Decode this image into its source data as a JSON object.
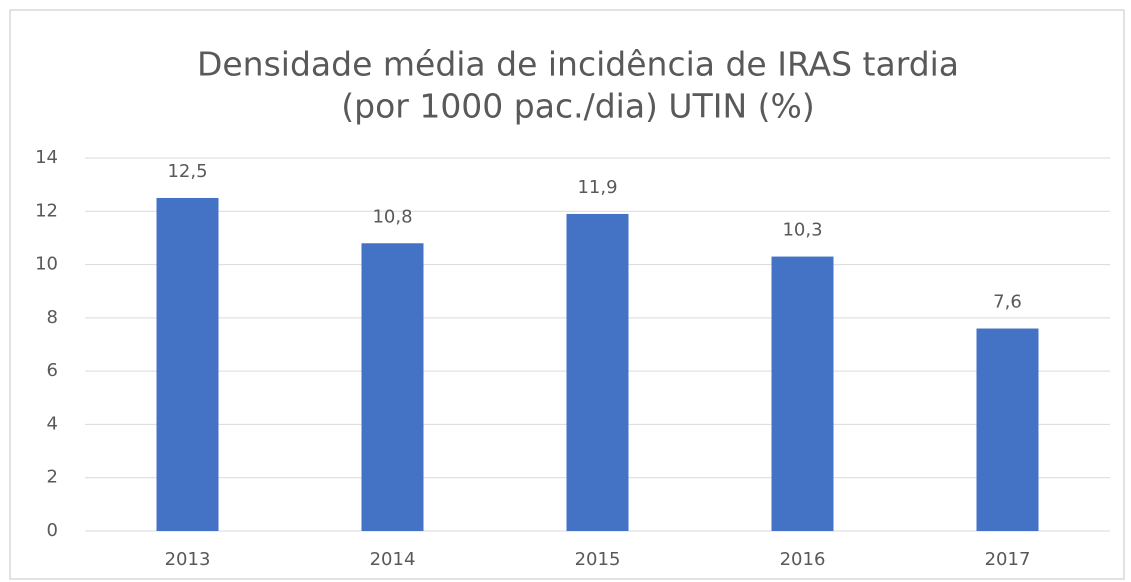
{
  "chart_data": {
    "type": "bar",
    "title": [
      "Densidade média de incidência de IRAS tardia",
      "(por 1000 pac./dia) UTIN (%)"
    ],
    "categories": [
      "2013",
      "2014",
      "2015",
      "2016",
      "2017"
    ],
    "values": [
      12.5,
      10.8,
      11.9,
      10.3,
      7.6
    ],
    "value_labels": [
      "12,5",
      "10,8",
      "11,9",
      "10,3",
      "7,6"
    ],
    "color": "#4472c4",
    "ylim": [
      0,
      14
    ],
    "yticks": [
      0,
      2,
      4,
      6,
      8,
      10,
      12,
      14
    ],
    "grid": true
  }
}
